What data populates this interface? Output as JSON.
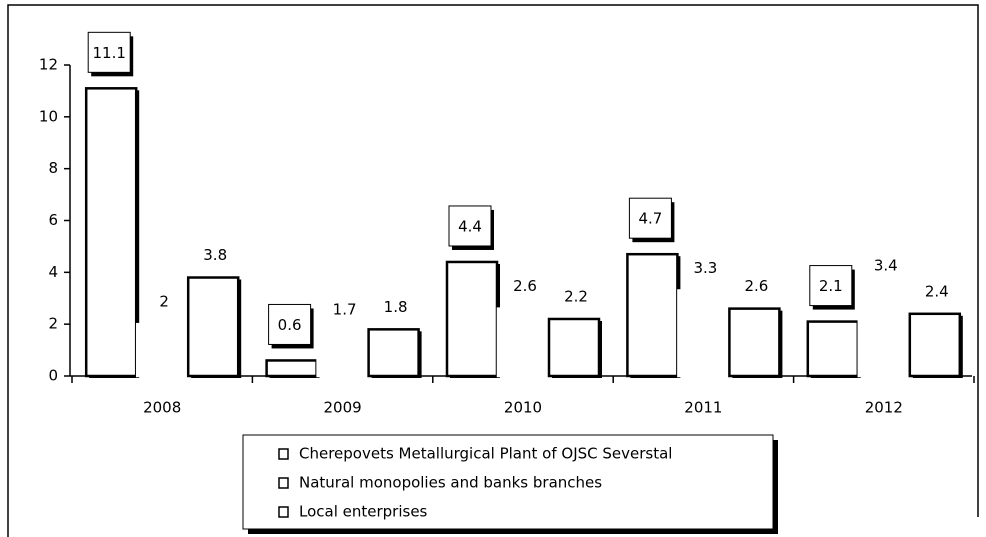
{
  "chart_data": {
    "type": "bar",
    "categories": [
      "2008",
      "2009",
      "2010",
      "2011",
      "2012"
    ],
    "series": [
      {
        "name": "Cherepovets Metallurgical Plant of OJSC Severstal",
        "color": "#ffffff",
        "border": "#000000",
        "values": [
          11.1,
          0.6,
          4.4,
          4.7,
          2.1
        ],
        "boxed_labels": true
      },
      {
        "name": "Natural monopolies and banks branches",
        "color": "#ffffff",
        "border": "#ffffff",
        "values": [
          2,
          1.7,
          2.6,
          3.3,
          3.4
        ],
        "boxed_labels": false
      },
      {
        "name": "Local enterprises",
        "color": "#ffffff",
        "border": "#000000",
        "values": [
          3.8,
          1.8,
          2.2,
          2.6,
          2.4
        ],
        "boxed_labels": false
      }
    ],
    "ylim": [
      0,
      12
    ],
    "yticks": [
      0,
      2,
      4,
      6,
      8,
      10,
      12
    ],
    "grid": false,
    "legend": "bottom"
  }
}
